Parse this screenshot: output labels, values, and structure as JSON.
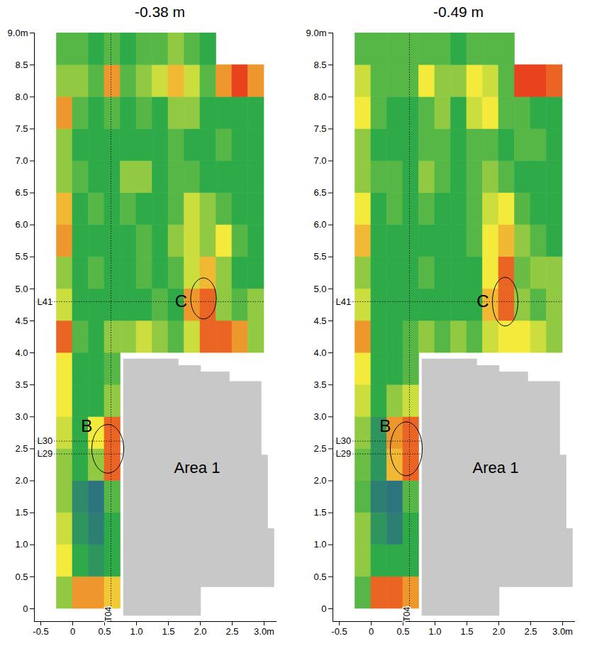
{
  "chart_data": [
    {
      "type": "heatmap",
      "title": "-0.38 m",
      "xlim": [
        -0.6,
        3.2
      ],
      "ylim": [
        -0.2,
        9.0
      ],
      "xticks": [
        -0.5,
        0,
        0.5,
        {
          "value": 1,
          "label": "1.0"
        },
        1.5,
        {
          "value": 2,
          "label": "2.0"
        },
        2.5,
        {
          "value": 3,
          "label": "3.0m"
        }
      ],
      "yticks": [
        0,
        0.5,
        {
          "value": 1,
          "label": "1.0"
        },
        1.5,
        {
          "value": 2,
          "label": "2.0"
        },
        2.5,
        {
          "value": 3,
          "label": "3.0"
        },
        3.5,
        {
          "value": 4,
          "label": "4.0"
        },
        4.5,
        {
          "value": 5,
          "label": "5.0"
        },
        5.5,
        {
          "value": 6,
          "label": "6.0"
        },
        6.5,
        {
          "value": 7,
          "label": "7.0"
        },
        7.5,
        {
          "value": 8,
          "label": "8.0"
        },
        8.5,
        {
          "value": 9,
          "label": "9.0m"
        }
      ],
      "zlim": [
        0,
        3
      ],
      "colors": [
        "#2b3fb4",
        "#2faa48",
        "#f3ea3c",
        "#e8431e"
      ],
      "x_edges": [
        -0.25,
        0,
        0.25,
        0.5,
        0.75,
        1.0,
        1.25,
        1.5,
        1.75,
        2.0,
        2.25,
        2.5,
        2.75,
        3.0
      ],
      "y_edges": [
        0,
        0.5,
        1.0,
        1.5,
        2.0,
        2.5,
        3.0,
        3.5,
        4.0,
        4.5,
        5.0,
        5.5,
        6.0,
        6.5,
        7.0,
        7.5,
        8.0,
        8.5,
        9.0
      ],
      "values": [
        [
          1.5,
          2.5,
          2.5,
          2.2,
          null,
          null,
          null,
          null,
          null,
          null,
          null,
          null,
          null
        ],
        [
          2,
          1,
          0.8,
          1,
          null,
          null,
          null,
          null,
          null,
          null,
          null,
          null,
          null
        ],
        [
          1.8,
          0.8,
          0.6,
          1,
          null,
          null,
          null,
          null,
          null,
          null,
          null,
          null,
          null
        ],
        [
          1.5,
          0.7,
          0.5,
          1.2,
          null,
          null,
          null,
          null,
          null,
          null,
          null,
          null,
          null
        ],
        [
          1.5,
          1,
          1.5,
          2.8,
          null,
          null,
          null,
          null,
          null,
          null,
          null,
          null,
          null
        ],
        [
          1.8,
          1,
          2,
          2.8,
          null,
          null,
          null,
          null,
          null,
          null,
          null,
          null,
          null
        ],
        [
          2,
          1,
          1,
          1.5,
          null,
          null,
          null,
          null,
          null,
          null,
          null,
          null,
          null
        ],
        [
          2,
          1,
          1,
          1.2,
          null,
          null,
          null,
          null,
          null,
          null,
          null,
          null,
          null
        ],
        [
          2.8,
          1.2,
          1,
          1.5,
          1.5,
          1.8,
          1.5,
          1.2,
          1.8,
          2.8,
          2.8,
          2.5,
          1.5
        ],
        [
          1.8,
          1,
          1,
          1,
          1,
          1,
          1.2,
          1,
          2.5,
          2.8,
          1.5,
          1.2,
          1.5
        ],
        [
          1.5,
          1,
          1.2,
          1,
          1,
          1.2,
          1,
          1.2,
          1.8,
          2.3,
          1.5,
          1,
          1
        ],
        [
          2.5,
          1,
          1,
          1,
          1,
          1.2,
          1,
          1.5,
          1.8,
          1.5,
          2,
          1.2,
          1
        ],
        [
          2.3,
          1,
          1.2,
          1,
          1.2,
          1,
          1,
          1.2,
          1.8,
          1.5,
          1.2,
          1,
          1
        ],
        [
          1.5,
          1.2,
          1,
          1,
          1.5,
          1.5,
          1,
          1.2,
          1.2,
          1,
          1,
          1,
          1
        ],
        [
          1.5,
          1,
          1,
          1,
          1,
          1,
          1,
          1.2,
          1,
          1,
          1.2,
          1,
          1
        ],
        [
          2.5,
          1.2,
          1,
          1.2,
          1,
          1.2,
          1,
          1.5,
          1.5,
          1,
          1,
          1,
          1
        ],
        [
          1.5,
          1.5,
          1.2,
          2.5,
          1.2,
          1.5,
          1.8,
          2.3,
          1.8,
          1.2,
          2.5,
          3,
          2.5
        ],
        [
          1.2,
          1.2,
          1,
          1.2,
          1,
          1.2,
          1.2,
          1.5,
          1.2,
          1,
          null,
          null,
          null
        ]
      ],
      "area": {
        "label": "Area 1",
        "label_x": 1.95,
        "label_y": 2.2,
        "polygon": [
          [
            0.8,
            -0.1
          ],
          [
            2.0,
            -0.1
          ],
          [
            2.0,
            0.35
          ],
          [
            3.15,
            0.35
          ],
          [
            3.15,
            1.25
          ],
          [
            3.05,
            1.25
          ],
          [
            3.05,
            2.4
          ],
          [
            2.95,
            2.4
          ],
          [
            2.95,
            3.55
          ],
          [
            2.45,
            3.55
          ],
          [
            2.45,
            3.7
          ],
          [
            2.0,
            3.7
          ],
          [
            2.0,
            3.8
          ],
          [
            1.65,
            3.8
          ],
          [
            1.65,
            3.9
          ],
          [
            0.8,
            3.9
          ]
        ]
      },
      "horizontal_lines": [
        {
          "label": "L41",
          "y": 4.8,
          "x_end": 3.0
        },
        {
          "label": "L30",
          "y": 2.62,
          "x_end": 0.8
        },
        {
          "label": "L29",
          "y": 2.42,
          "x_end": 0.8
        }
      ],
      "vertical_lines": [
        {
          "label": "T04",
          "x": 0.6
        }
      ],
      "ellipses": [
        {
          "label": "B",
          "x": 0.55,
          "y": 2.5,
          "rx": 0.25,
          "ry": 0.38,
          "label_x": 0.22,
          "label_y": 2.85
        },
        {
          "label": "C",
          "x": 2.05,
          "y": 4.85,
          "rx": 0.2,
          "ry": 0.32,
          "label_x": 1.7,
          "label_y": 4.8
        }
      ]
    },
    {
      "type": "heatmap",
      "title": "-0.49 m",
      "xlim": [
        -0.6,
        3.2
      ],
      "ylim": [
        -0.2,
        9.0
      ],
      "xticks": [
        -0.5,
        0,
        0.5,
        {
          "value": 1,
          "label": "1.0"
        },
        1.5,
        {
          "value": 2,
          "label": "2.0"
        },
        2.5,
        {
          "value": 3,
          "label": "3.0m"
        }
      ],
      "yticks": [
        0,
        0.5,
        {
          "value": 1,
          "label": "1.0"
        },
        1.5,
        {
          "value": 2,
          "label": "2.0"
        },
        2.5,
        {
          "value": 3,
          "label": "3.0"
        },
        3.5,
        {
          "value": 4,
          "label": "4.0"
        },
        4.5,
        {
          "value": 5,
          "label": "5.0"
        },
        5.5,
        {
          "value": 6,
          "label": "6.0"
        },
        6.5,
        {
          "value": 7,
          "label": "7.0"
        },
        7.5,
        {
          "value": 8,
          "label": "8.0"
        },
        8.5,
        {
          "value": 9,
          "label": "9.0m"
        }
      ],
      "zlim": [
        0,
        3
      ],
      "colors": [
        "#2b3fb4",
        "#2faa48",
        "#f3ea3c",
        "#e8431e"
      ],
      "x_edges": [
        -0.25,
        0,
        0.25,
        0.5,
        0.75,
        1.0,
        1.25,
        1.5,
        1.75,
        2.0,
        2.25,
        2.5,
        2.75,
        3.0
      ],
      "y_edges": [
        0,
        0.5,
        1.0,
        1.5,
        2.0,
        2.5,
        3.0,
        3.5,
        4.0,
        4.5,
        5.0,
        5.5,
        6.0,
        6.5,
        7.0,
        7.5,
        8.0,
        8.5,
        9.0
      ],
      "values": [
        [
          1.2,
          2.8,
          2.8,
          2.5,
          null,
          null,
          null,
          null,
          null,
          null,
          null,
          null,
          null
        ],
        [
          1.5,
          1,
          1,
          1,
          null,
          null,
          null,
          null,
          null,
          null,
          null,
          null,
          null
        ],
        [
          1.5,
          0.8,
          0.6,
          1,
          null,
          null,
          null,
          null,
          null,
          null,
          null,
          null,
          null
        ],
        [
          1.2,
          0.6,
          0.5,
          1.2,
          null,
          null,
          null,
          null,
          null,
          null,
          null,
          null,
          null
        ],
        [
          1.3,
          0.8,
          2.3,
          2.8,
          null,
          null,
          null,
          null,
          null,
          null,
          null,
          null,
          null
        ],
        [
          1.5,
          0.8,
          2.5,
          2.8,
          null,
          null,
          null,
          null,
          null,
          null,
          null,
          null,
          null
        ],
        [
          1.8,
          1,
          1.5,
          1.8,
          null,
          null,
          null,
          null,
          null,
          null,
          null,
          null,
          null
        ],
        [
          2,
          1,
          1,
          1.2,
          null,
          null,
          null,
          null,
          null,
          null,
          null,
          null,
          null
        ],
        [
          2.5,
          1,
          1,
          1.2,
          1.5,
          1.2,
          1.5,
          1.2,
          1.8,
          2,
          2,
          1.8,
          1.5
        ],
        [
          1.8,
          1,
          1,
          1,
          1,
          1,
          1,
          1,
          2.3,
          2.8,
          1.5,
          1.2,
          1.5
        ],
        [
          1.5,
          1,
          1,
          1,
          1.2,
          1,
          1,
          1,
          2,
          2.8,
          1.3,
          1.5,
          1.5
        ],
        [
          2.3,
          1,
          1,
          1,
          1,
          1,
          1,
          1.2,
          2,
          2.3,
          1.5,
          1.2,
          1
        ],
        [
          2,
          1,
          1.2,
          1,
          1.2,
          1,
          1,
          1.2,
          1.8,
          2,
          1.2,
          1,
          1
        ],
        [
          1.5,
          1.2,
          1.2,
          1,
          1.5,
          1.2,
          1,
          1.2,
          1.5,
          1.2,
          1,
          1,
          1
        ],
        [
          1.5,
          1,
          1,
          1,
          1.2,
          1.2,
          1,
          1.2,
          1.2,
          1,
          1.2,
          1.2,
          1
        ],
        [
          2,
          1.2,
          1,
          1,
          1.2,
          1.5,
          1,
          1.8,
          2,
          1.2,
          1.2,
          1,
          1
        ],
        [
          1.8,
          1.2,
          1.2,
          1.2,
          2,
          1.5,
          1.5,
          2,
          1.8,
          1.2,
          3,
          3,
          2.8
        ],
        [
          1.2,
          1.2,
          1.2,
          1.2,
          1.2,
          1.2,
          1,
          1.2,
          1.2,
          1.2,
          null,
          null,
          null
        ]
      ],
      "area": {
        "label": "Area 1",
        "label_x": 1.95,
        "label_y": 2.2,
        "polygon": [
          [
            0.8,
            -0.1
          ],
          [
            2.0,
            -0.1
          ],
          [
            2.0,
            0.35
          ],
          [
            3.15,
            0.35
          ],
          [
            3.15,
            1.25
          ],
          [
            3.05,
            1.25
          ],
          [
            3.05,
            2.4
          ],
          [
            2.95,
            2.4
          ],
          [
            2.95,
            3.55
          ],
          [
            2.45,
            3.55
          ],
          [
            2.45,
            3.7
          ],
          [
            2.0,
            3.7
          ],
          [
            2.0,
            3.8
          ],
          [
            1.65,
            3.8
          ],
          [
            1.65,
            3.9
          ],
          [
            0.8,
            3.9
          ]
        ]
      },
      "horizontal_lines": [
        {
          "label": "L41",
          "y": 4.8,
          "x_end": 3.0
        },
        {
          "label": "L30",
          "y": 2.62,
          "x_end": 0.8
        },
        {
          "label": "L29",
          "y": 2.42,
          "x_end": 0.8
        }
      ],
      "vertical_lines": [
        {
          "label": "T04",
          "x": 0.6
        }
      ],
      "ellipses": [
        {
          "label": "B",
          "x": 0.55,
          "y": 2.5,
          "rx": 0.25,
          "ry": 0.42,
          "label_x": 0.22,
          "label_y": 2.85
        },
        {
          "label": "C",
          "x": 2.1,
          "y": 4.8,
          "rx": 0.2,
          "ry": 0.38,
          "label_x": 1.75,
          "label_y": 4.8
        }
      ]
    }
  ]
}
